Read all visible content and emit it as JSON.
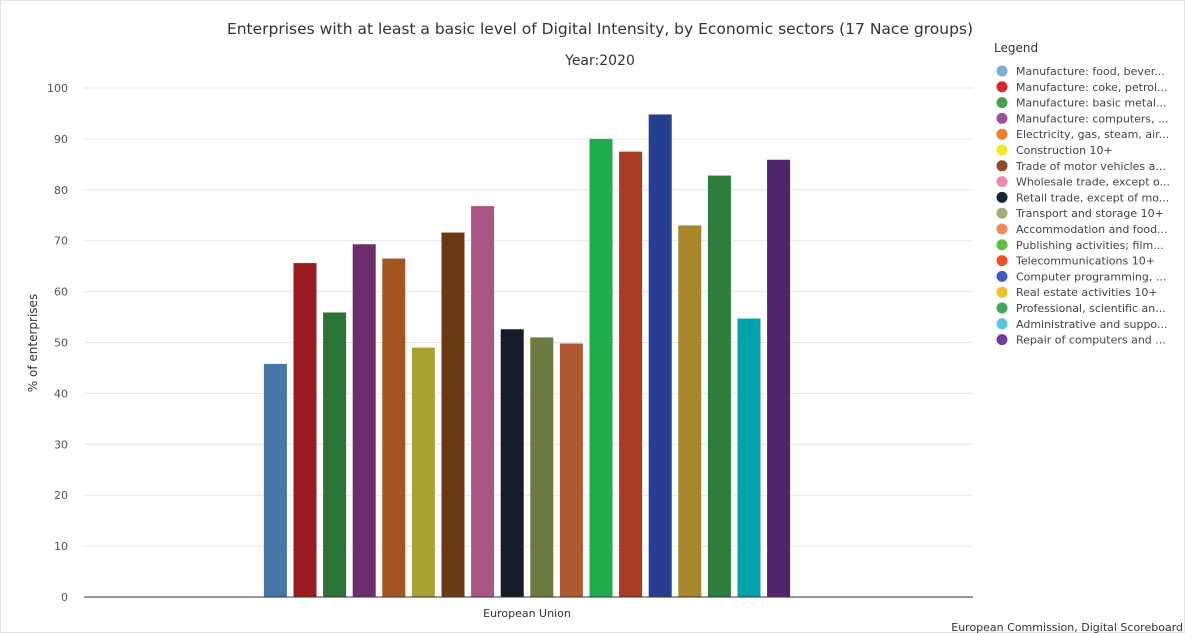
{
  "chart_data": {
    "type": "bar",
    "title": "Enterprises with at least a basic level of Digital Intensity, by Economic sectors (17 Nace groups)",
    "subtitle": "Year:2020",
    "ylabel": "% of enterprises",
    "xlabel": "",
    "categories": [
      "European Union"
    ],
    "ylim": [
      0,
      100
    ],
    "yticks": [
      0,
      10,
      20,
      30,
      40,
      50,
      60,
      70,
      80,
      90,
      100
    ],
    "grid": true,
    "legend_title": "Legend",
    "legend_position": "right",
    "credit": "European Commission, Digital Scoreboard",
    "series": [
      {
        "name": "Manufacture: food, bever...",
        "values": [
          45.8
        ],
        "color": "#4477a8",
        "legend_color": "#7aafdc"
      },
      {
        "name": "Manufacture: coke, petrol...",
        "values": [
          65.6
        ],
        "color": "#9b1c1f",
        "legend_color": "#d62a2a"
      },
      {
        "name": "Manufacture: basic metal...",
        "values": [
          55.9
        ],
        "color": "#2d7236",
        "legend_color": "#45a04c"
      },
      {
        "name": "Manufacture: computers, ...",
        "values": [
          69.3
        ],
        "color": "#6b2d6b",
        "legend_color": "#9b4f9f"
      },
      {
        "name": "Electricity, gas, steam, air...",
        "values": [
          66.5
        ],
        "color": "#a6541f",
        "legend_color": "#f07f2b"
      },
      {
        "name": "Construction 10+",
        "values": [
          49.0
        ],
        "color": "#a9a432",
        "legend_color": "#f4ea2d"
      },
      {
        "name": "Trade of motor vehicles a...",
        "values": [
          71.6
        ],
        "color": "#6b3914",
        "legend_color": "#8f4d22"
      },
      {
        "name": "Wholesale trade, except o...",
        "values": [
          76.8
        ],
        "color": "#a85584",
        "legend_color": "#ef86b8"
      },
      {
        "name": "Retail trade, except of mo...",
        "values": [
          52.6
        ],
        "color": "#131c28",
        "legend_color": "#172639"
      },
      {
        "name": "Transport and storage 10+",
        "values": [
          51.0
        ],
        "color": "#6c7b40",
        "legend_color": "#9fb071"
      },
      {
        "name": "Accommodation and food...",
        "values": [
          49.8
        ],
        "color": "#ae5934",
        "legend_color": "#f28a58"
      },
      {
        "name": "Publishing activities; film...",
        "values": [
          90.0
        ],
        "color": "#1fad4c",
        "legend_color": "#62be3f"
      },
      {
        "name": "Telecommunications 10+",
        "values": [
          87.5
        ],
        "color": "#a73b22",
        "legend_color": "#ee5126"
      },
      {
        "name": "Computer programming, ...",
        "values": [
          94.8
        ],
        "color": "#253e8f",
        "legend_color": "#3e5cbd"
      },
      {
        "name": "Real estate activities 10+",
        "values": [
          73.0
        ],
        "color": "#a8862c",
        "legend_color": "#f5c023"
      },
      {
        "name": "Professional, scientific an...",
        "values": [
          82.8
        ],
        "color": "#2d7d3c",
        "legend_color": "#45a858"
      },
      {
        "name": "Administrative and suppo...",
        "values": [
          54.7
        ],
        "color": "#00a3ad",
        "legend_color": "#5bc5db"
      },
      {
        "name": "Repair of computers and ...",
        "values": [
          85.9
        ],
        "color": "#4f246b",
        "legend_color": "#6f3ba1"
      }
    ]
  }
}
